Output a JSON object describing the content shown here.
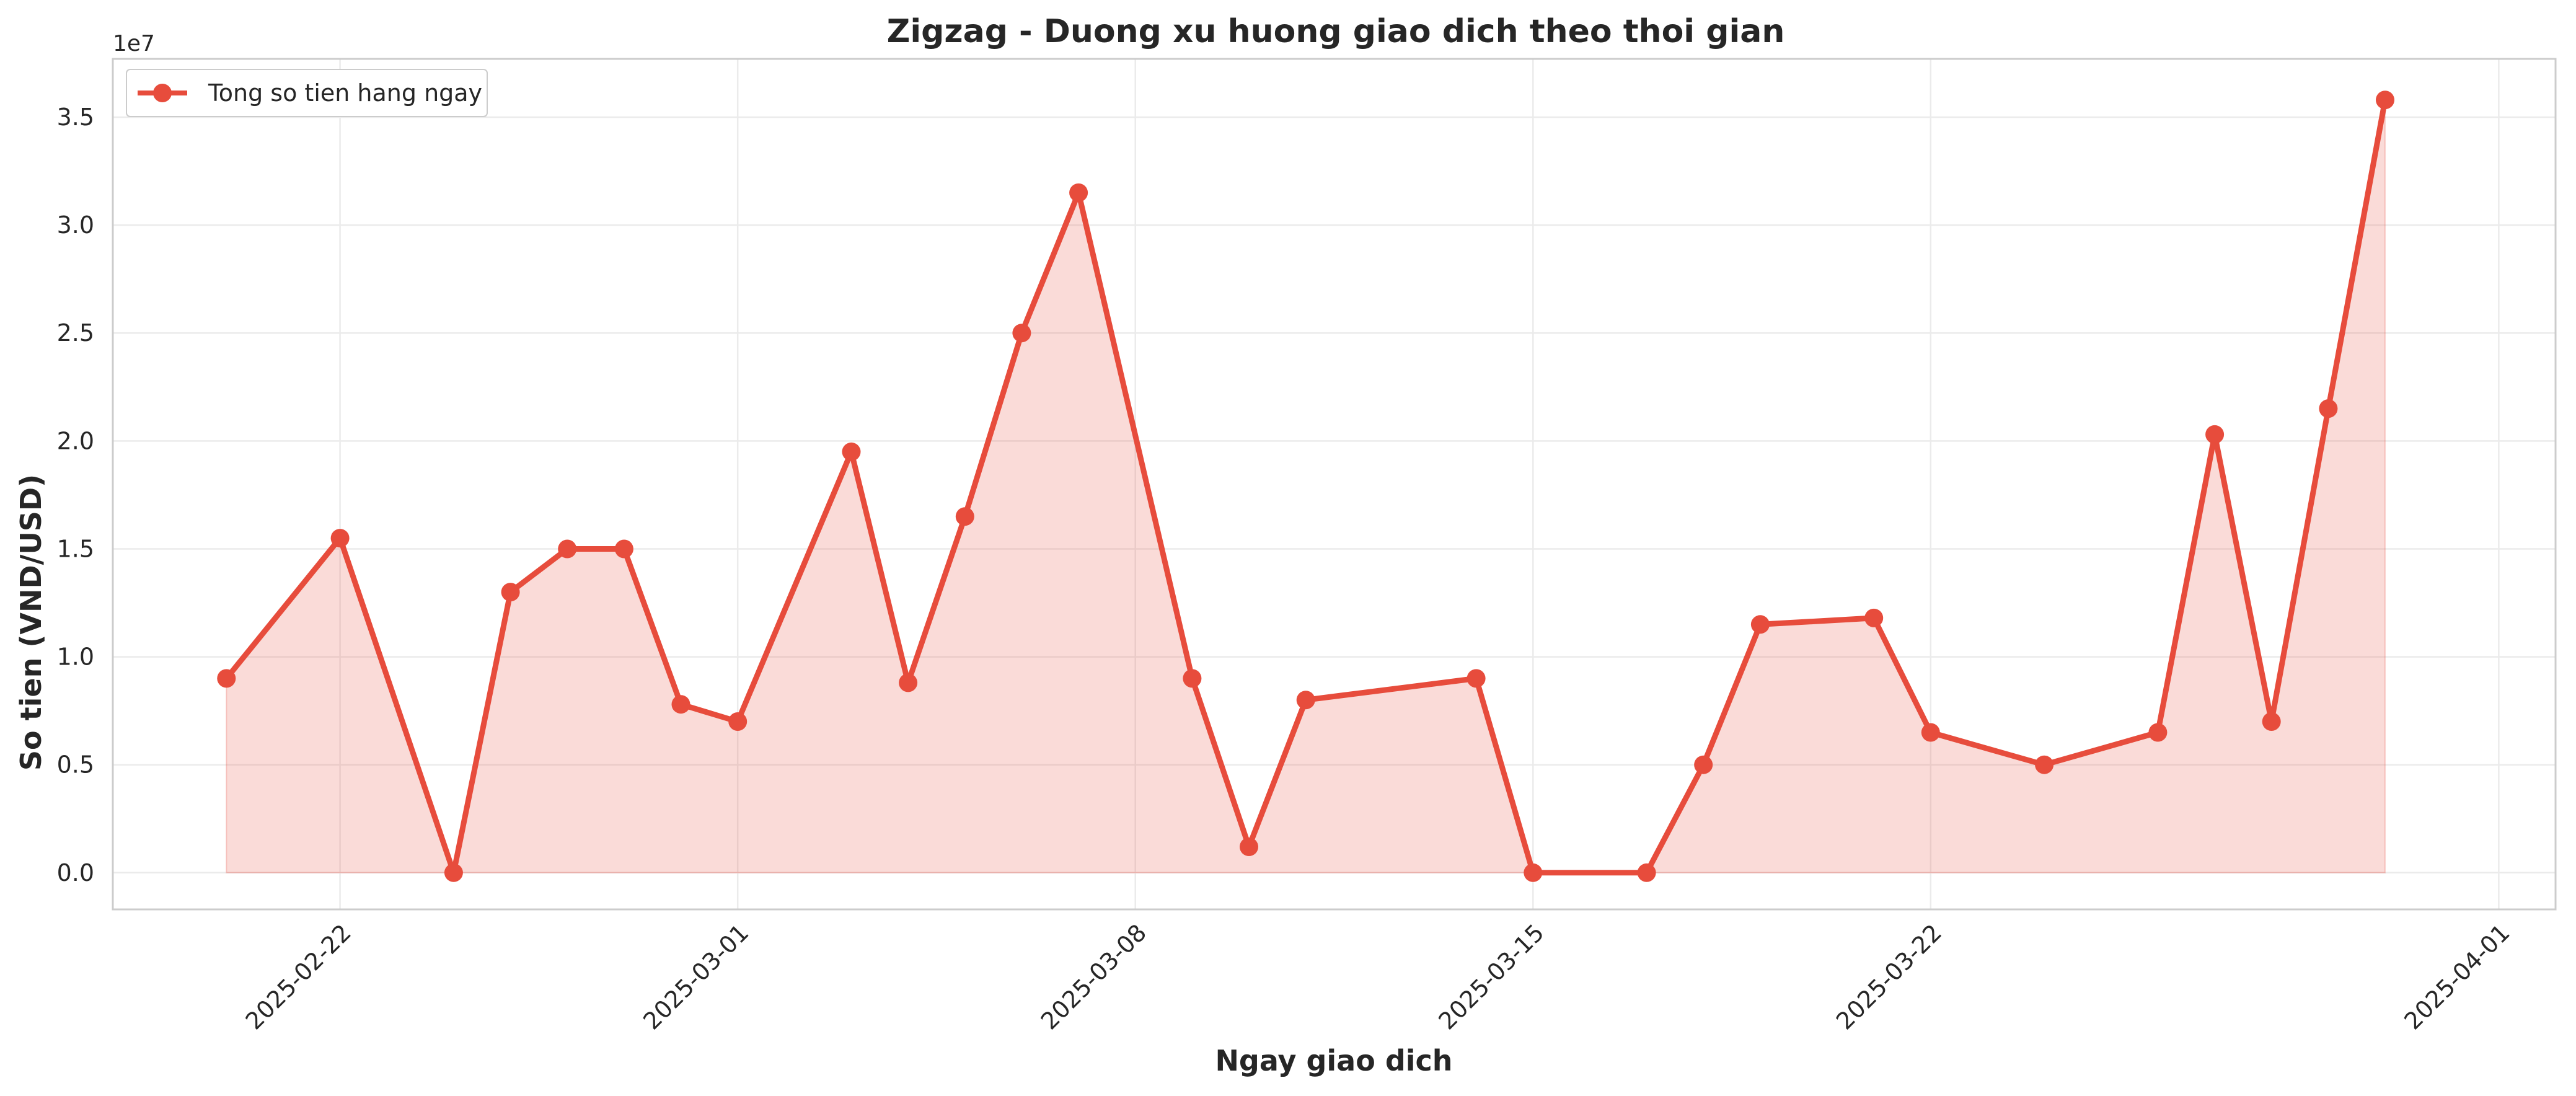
{
  "chart_data": {
    "type": "line",
    "title": "Zigzag - Duong xu huong giao dich theo thoi gian",
    "xlabel": "Ngay giao dich",
    "ylabel": "So tien (VND/USD)",
    "y_offset_label": "1e7",
    "x_ticks": [
      "2025-02-22",
      "2025-03-01",
      "2025-03-08",
      "2025-03-15",
      "2025-03-22",
      "2025-04-01"
    ],
    "y_ticks": [
      "0.0",
      "0.5",
      "1.0",
      "1.5",
      "2.0",
      "2.5",
      "3.0",
      "3.5"
    ],
    "xlim": [
      "2025-02-18",
      "2025-04-02"
    ],
    "ylim": [
      -1700000,
      37700000
    ],
    "grid": true,
    "legend_position": "top-left",
    "colors": {
      "line": "#e74c3c",
      "fill": "#f9d9d6",
      "grid": "#ebebeb",
      "frame": "#cccccc"
    },
    "series": [
      {
        "name": "Tong so tien hang ngay",
        "points": [
          {
            "x": "2025-02-20",
            "y": 9000000
          },
          {
            "x": "2025-02-22",
            "y": 15500000
          },
          {
            "x": "2025-02-24",
            "y": 0
          },
          {
            "x": "2025-02-25",
            "y": 13000000
          },
          {
            "x": "2025-02-26",
            "y": 15000000
          },
          {
            "x": "2025-02-27",
            "y": 15000000
          },
          {
            "x": "2025-02-28",
            "y": 7800000
          },
          {
            "x": "2025-03-01",
            "y": 7000000
          },
          {
            "x": "2025-03-03",
            "y": 19500000
          },
          {
            "x": "2025-03-04",
            "y": 8800000
          },
          {
            "x": "2025-03-05",
            "y": 16500000
          },
          {
            "x": "2025-03-06",
            "y": 25000000
          },
          {
            "x": "2025-03-07",
            "y": 31500000
          },
          {
            "x": "2025-03-09",
            "y": 9000000
          },
          {
            "x": "2025-03-10",
            "y": 1200000
          },
          {
            "x": "2025-03-11",
            "y": 8000000
          },
          {
            "x": "2025-03-14",
            "y": 9000000
          },
          {
            "x": "2025-03-15",
            "y": 0
          },
          {
            "x": "2025-03-17",
            "y": 0
          },
          {
            "x": "2025-03-18",
            "y": 5000000
          },
          {
            "x": "2025-03-19",
            "y": 11500000
          },
          {
            "x": "2025-03-21",
            "y": 11800000
          },
          {
            "x": "2025-03-22",
            "y": 6500000
          },
          {
            "x": "2025-03-24",
            "y": 5000000
          },
          {
            "x": "2025-03-26",
            "y": 6500000
          },
          {
            "x": "2025-03-27",
            "y": 20300000
          },
          {
            "x": "2025-03-28",
            "y": 7000000
          },
          {
            "x": "2025-03-29",
            "y": 21500000
          },
          {
            "x": "2025-03-30",
            "y": 35800000
          }
        ]
      }
    ]
  }
}
